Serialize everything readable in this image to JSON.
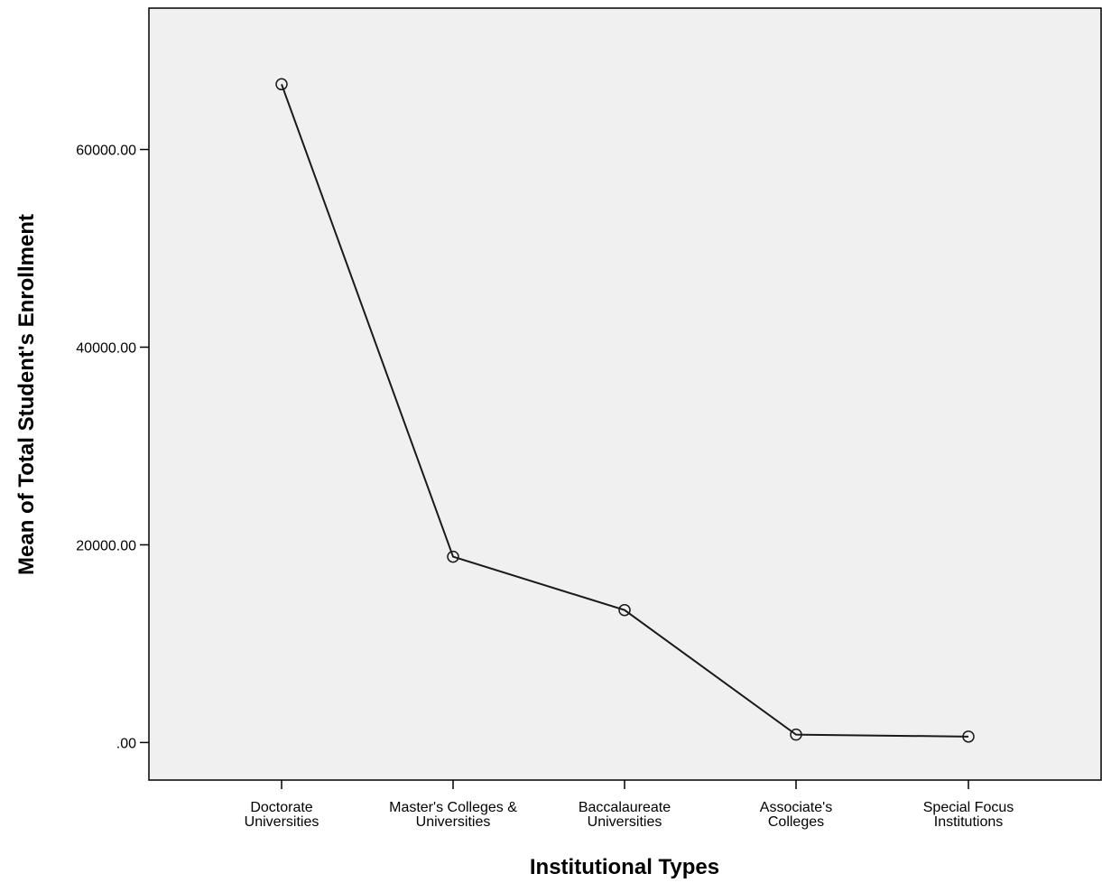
{
  "chart_data": {
    "type": "line",
    "title": "",
    "xlabel": "Institutional Types",
    "ylabel": "Mean of Total Student's Enrollment",
    "categories": [
      [
        "Doctorate",
        "Universities"
      ],
      [
        "Master's Colleges &",
        "Universities"
      ],
      [
        "Baccalaureate",
        "Universities"
      ],
      [
        "Associate's",
        "Colleges"
      ],
      [
        "Special Focus",
        "Institutions"
      ]
    ],
    "series": [
      {
        "values": [
          66600,
          18800,
          13400,
          800,
          600
        ]
      }
    ],
    "yticks": [
      0,
      20000,
      40000,
      60000
    ],
    "ytick_labels": [
      ".00",
      "20000.00",
      "40000.00",
      "60000.00"
    ],
    "ylim": [
      -3800,
      74300
    ],
    "grid": false,
    "legend": "none",
    "marker": "open-circle",
    "colors": {
      "plot_background": "#f0f0f0",
      "line": "#1a1a1a",
      "frame": "#000000"
    }
  }
}
